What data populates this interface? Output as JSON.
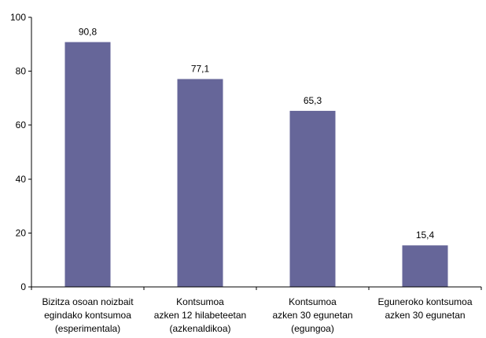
{
  "chart_data": {
    "type": "bar",
    "categories": [
      [
        "Bizitza osoan noizbait",
        "egindako kontsumoa",
        "(esperimentala)"
      ],
      [
        "Kontsumoa",
        "azken 12 hilabeteetan",
        "(azkenaldikoa)"
      ],
      [
        "Kontsumoa",
        "azken 30 egunetan",
        "(egungoa)"
      ],
      [
        "Eguneroko kontsumoa",
        "azken 30 egunetan"
      ]
    ],
    "values": [
      90.8,
      77.1,
      65.3,
      15.4
    ],
    "data_labels": [
      "90,8",
      "77,1",
      "65,3",
      "15,4"
    ],
    "yticks": [
      0,
      20,
      40,
      60,
      80,
      100
    ],
    "ylim": [
      0,
      100
    ],
    "title": "",
    "xlabel": "",
    "ylabel": "",
    "grid": false,
    "legend": "none",
    "bar_color": "#666699"
  }
}
